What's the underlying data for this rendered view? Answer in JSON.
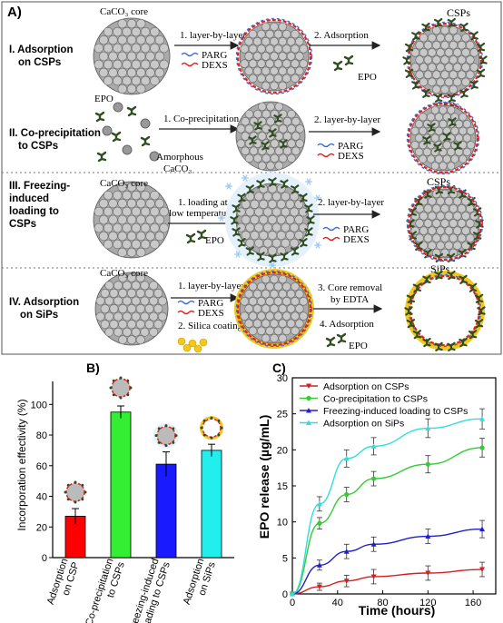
{
  "panelA": {
    "label": "A)",
    "rows": [
      {
        "title_lines": [
          "I. Adsorption",
          "on CSPs"
        ],
        "core_label": "CaCO₃ core",
        "step1": "1. layer-by-layer",
        "legend": [
          "PARG",
          "DEXS"
        ],
        "step2": "2. Adsorption",
        "drug": "EPO",
        "product": "CSPs"
      },
      {
        "title_lines": [
          "II. Co-precipitation",
          "to CSPs"
        ],
        "drug": "EPO",
        "amorphous": [
          "Amorphous",
          "CaCO₃"
        ],
        "step1": "1. Co-precipitation",
        "step2": "2. layer-by-layer",
        "legend": [
          "PARG",
          "DEXS"
        ],
        "product": "CSPs"
      },
      {
        "title_lines": [
          "III. Freezing-",
          "induced",
          "loading to",
          "CSPs"
        ],
        "core_label": "CaCO₃ core",
        "step1_lines": [
          "1. loading at",
          "low temperature"
        ],
        "drug": "EPO",
        "step2": "2. layer-by-layer",
        "legend": [
          "PARG",
          "DEXS"
        ],
        "product": "CSPs"
      },
      {
        "title_lines": [
          "IV. Adsorption",
          "on SiPs"
        ],
        "core_label": "CaCO₃ core",
        "step1": "1. layer-by-layer",
        "legend": [
          "PARG",
          "DEXS"
        ],
        "step2": "2. Silica coating",
        "step3_lines": [
          "3. Core removal",
          "by EDTA"
        ],
        "step4": "4. Adsorption",
        "drug": "EPO",
        "product": "SiPs"
      }
    ],
    "colors": {
      "parg": "#3a6fd8",
      "dexs": "#e02020",
      "silica": "#f2c81a",
      "ice": "#9cc8f0",
      "core": "#c9c9c9",
      "epo": "#2f4d1e"
    }
  },
  "chart_data": [
    {
      "panel": "B)",
      "type": "bar",
      "ylabel": "Incorporation effectivity (%)",
      "categories": [
        "Adsorption\non CSP",
        "Co-precipitation\nto CSPs",
        "Freezing-induced\nloading to CSPs",
        "Adsorption\non SiPs"
      ],
      "values": [
        27,
        95,
        61,
        70
      ],
      "errors": [
        5,
        4,
        8,
        4
      ],
      "colors": [
        "#ff0000",
        "#33ee33",
        "#1a1aff",
        "#22eeee"
      ],
      "ylim": [
        0,
        115
      ],
      "yticks": [
        0,
        20,
        40,
        60,
        80,
        100
      ]
    },
    {
      "panel": "C)",
      "type": "line",
      "xlabel": "Time (hours)",
      "ylabel": "EPO release (µg/mL)",
      "xlim": [
        0,
        180
      ],
      "ylim": [
        0,
        30
      ],
      "xticks": [
        0,
        40,
        80,
        120,
        160
      ],
      "yticks": [
        0,
        5,
        10,
        15,
        20,
        25,
        30
      ],
      "legend_position": "top-left",
      "series": [
        {
          "name": "Adsorption on CSPs",
          "color": "#d42020",
          "marker": "down-triangle",
          "x": [
            0,
            24,
            48,
            72,
            120,
            168
          ],
          "y": [
            0,
            1.0,
            1.8,
            2.4,
            2.9,
            3.4
          ],
          "err": [
            0,
            0.5,
            0.8,
            1.0,
            1.0,
            1.0
          ]
        },
        {
          "name": "Co-precipitation to CSPs",
          "color": "#33cc33",
          "marker": "circle",
          "x": [
            0,
            24,
            48,
            72,
            120,
            168
          ],
          "y": [
            0,
            9.8,
            13.8,
            16.0,
            18.0,
            20.3
          ],
          "err": [
            0,
            0.8,
            1.0,
            1.0,
            1.2,
            1.3
          ]
        },
        {
          "name": "Freezing-induced loading to CSPs",
          "color": "#2020c8",
          "marker": "triangle",
          "x": [
            0,
            24,
            48,
            72,
            120,
            168
          ],
          "y": [
            0,
            4.0,
            5.9,
            6.9,
            8.0,
            9.0
          ],
          "err": [
            0,
            0.7,
            1.0,
            1.0,
            1.0,
            1.2
          ]
        },
        {
          "name": "Adsorption on SiPs",
          "color": "#33dddd",
          "marker": "triangle",
          "x": [
            0,
            24,
            48,
            72,
            120,
            168
          ],
          "y": [
            0,
            12.5,
            18.8,
            20.5,
            23.0,
            24.3
          ],
          "err": [
            0,
            1.0,
            1.2,
            1.2,
            1.3,
            1.4
          ]
        }
      ]
    }
  ]
}
